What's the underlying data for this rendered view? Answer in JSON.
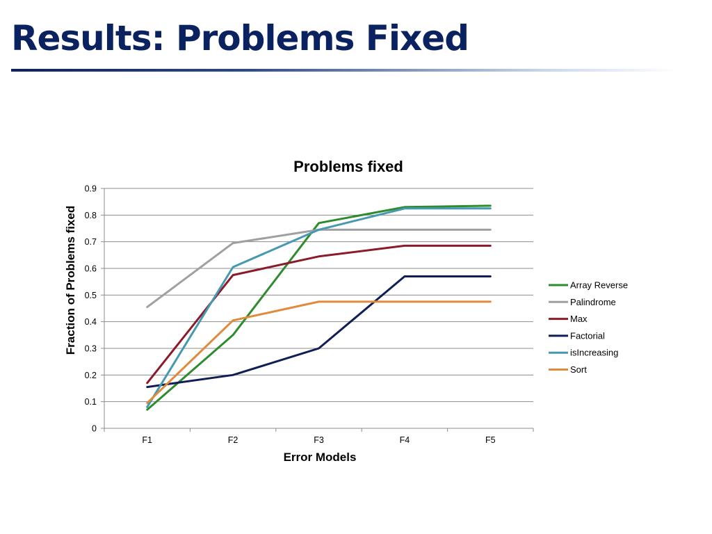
{
  "slide": {
    "title": "Results: Problems Fixed"
  },
  "chart_data": {
    "type": "line",
    "title": "Problems fixed",
    "xlabel": "Error Models",
    "ylabel": "Fraction of Problems fixed",
    "categories": [
      "F1",
      "F2",
      "F3",
      "F4",
      "F5"
    ],
    "ylim": [
      0,
      0.9
    ],
    "yticks": [
      "0",
      "0.1",
      "0.2",
      "0.3",
      "0.4",
      "0.5",
      "0.6",
      "0.7",
      "0.8",
      "0.9"
    ],
    "grid": true,
    "legend_position": "right",
    "series": [
      {
        "name": "Array Reverse",
        "color": "#2e8b2e",
        "values": [
          0.07,
          0.35,
          0.77,
          0.83,
          0.835
        ]
      },
      {
        "name": "Palindrome",
        "color": "#a0a0a0",
        "values": [
          0.455,
          0.695,
          0.745,
          0.745,
          0.745
        ]
      },
      {
        "name": "Max",
        "color": "#8b1a2b",
        "values": [
          0.17,
          0.575,
          0.645,
          0.685,
          0.685
        ]
      },
      {
        "name": "Factorial",
        "color": "#0f1f55",
        "values": [
          0.155,
          0.2,
          0.3,
          0.57,
          0.57
        ]
      },
      {
        "name": "isIncreasing",
        "color": "#4599b0",
        "values": [
          0.08,
          0.605,
          0.745,
          0.825,
          0.825
        ]
      },
      {
        "name": "Sort",
        "color": "#e08a3c",
        "values": [
          0.095,
          0.405,
          0.475,
          0.475,
          0.475
        ]
      }
    ]
  }
}
